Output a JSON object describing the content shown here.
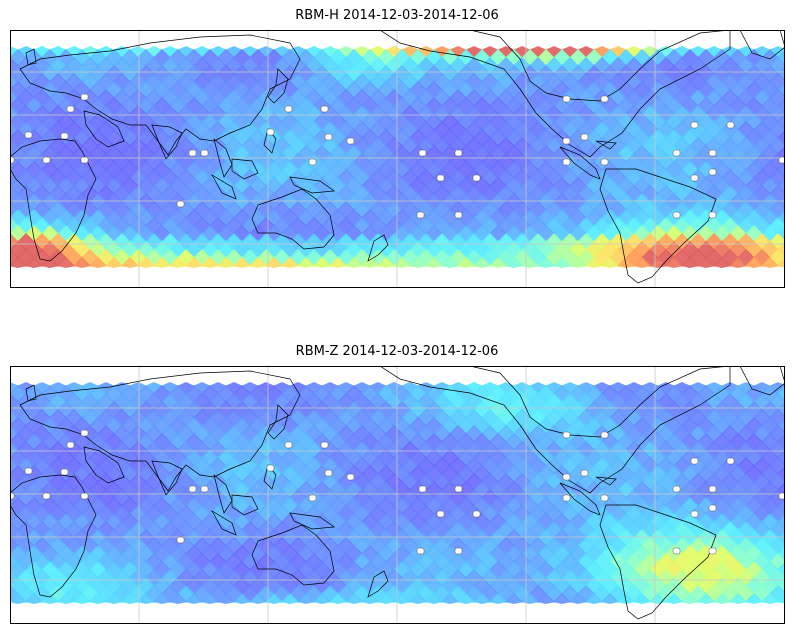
{
  "panels": [
    {
      "title": "RBM-H 2014-12-03-2014-12-06",
      "field": "H",
      "colors": {
        "low": "#6a6aff",
        "mid": "#55e0ff",
        "high": "#e06060"
      }
    },
    {
      "title": "RBM-Z 2014-12-03-2014-12-06",
      "field": "Z",
      "colors": {
        "low": "#6a6aff",
        "mid": "#55e0ff",
        "high": "#e06060"
      }
    }
  ],
  "palette": [
    "#6a6aff",
    "#6690ff",
    "#55c8ff",
    "#55eeff",
    "#88ffcc",
    "#ddff66",
    "#ffe060",
    "#ff9955",
    "#e06060"
  ],
  "stations_note": "white square station markers"
}
